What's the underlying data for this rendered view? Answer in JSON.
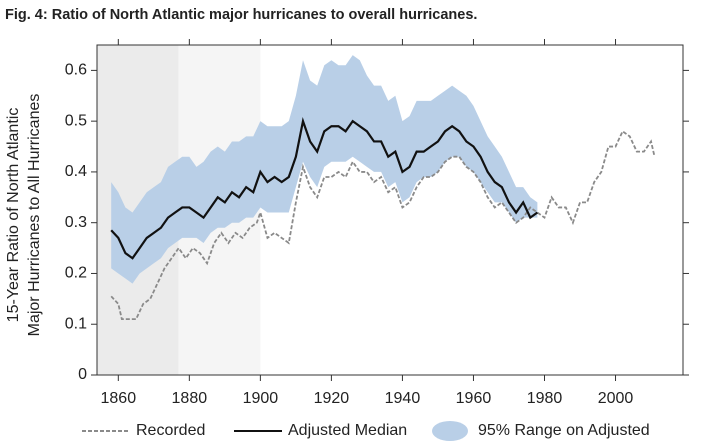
{
  "chart_data": {
    "type": "line",
    "title": "Fig. 4: Ratio of North Atlantic major hurricanes to overall hurricanes.",
    "ylabel": [
      "15-Year Ratio of North Atlantic",
      "Major Hurricanes to All Hurricanes"
    ],
    "xlim": [
      1854,
      2019
    ],
    "xticks": [
      1860,
      1880,
      1900,
      1920,
      1940,
      1960,
      1980,
      2000
    ],
    "ylim": [
      0,
      0.65
    ],
    "yticks": [
      0,
      0.1,
      0.2,
      0.3,
      0.4,
      0.5,
      0.6
    ],
    "shading": [
      {
        "from": 1854,
        "to": 1877,
        "color": "#ebebeb"
      },
      {
        "from": 1877,
        "to": 1900,
        "color": "#f5f5f5"
      }
    ],
    "legend": "bottom",
    "series": [
      {
        "name": "Recorded",
        "color": "#8a8a8a",
        "style": "dashed",
        "x": [
          1858,
          1860,
          1861,
          1863,
          1865,
          1867,
          1869,
          1871,
          1873,
          1875,
          1877,
          1879,
          1881,
          1883,
          1885,
          1887,
          1889,
          1891,
          1893,
          1895,
          1897,
          1899,
          1900,
          1902,
          1904,
          1906,
          1908,
          1910,
          1912,
          1914,
          1916,
          1918,
          1920,
          1922,
          1924,
          1926,
          1928,
          1930,
          1932,
          1934,
          1936,
          1938,
          1940,
          1942,
          1944,
          1946,
          1948,
          1950,
          1952,
          1954,
          1956,
          1958,
          1960,
          1962,
          1964,
          1966,
          1968,
          1970,
          1972,
          1974,
          1976,
          1978,
          1980,
          1982,
          1984,
          1986,
          1988,
          1990,
          1992,
          1994,
          1996,
          1998,
          2000,
          2002,
          2004,
          2006,
          2008,
          2010,
          2011
        ],
        "values": [
          0.155,
          0.14,
          0.11,
          0.11,
          0.11,
          0.14,
          0.15,
          0.18,
          0.21,
          0.23,
          0.25,
          0.23,
          0.25,
          0.24,
          0.22,
          0.26,
          0.28,
          0.26,
          0.28,
          0.27,
          0.29,
          0.3,
          0.32,
          0.27,
          0.28,
          0.27,
          0.26,
          0.34,
          0.41,
          0.37,
          0.35,
          0.39,
          0.39,
          0.4,
          0.39,
          0.42,
          0.4,
          0.4,
          0.38,
          0.39,
          0.36,
          0.37,
          0.33,
          0.34,
          0.37,
          0.39,
          0.39,
          0.4,
          0.42,
          0.43,
          0.43,
          0.41,
          0.4,
          0.38,
          0.35,
          0.33,
          0.34,
          0.32,
          0.3,
          0.31,
          0.33,
          0.32,
          0.31,
          0.35,
          0.33,
          0.33,
          0.3,
          0.34,
          0.34,
          0.38,
          0.4,
          0.45,
          0.45,
          0.48,
          0.47,
          0.44,
          0.44,
          0.46,
          0.43
        ]
      },
      {
        "name": "Adjusted Median",
        "color": "#111111",
        "style": "solid",
        "x": [
          1858,
          1860,
          1862,
          1864,
          1866,
          1868,
          1870,
          1872,
          1874,
          1876,
          1878,
          1880,
          1882,
          1884,
          1886,
          1888,
          1890,
          1892,
          1894,
          1896,
          1898,
          1900,
          1902,
          1904,
          1906,
          1908,
          1910,
          1912,
          1914,
          1916,
          1918,
          1920,
          1922,
          1924,
          1926,
          1928,
          1930,
          1932,
          1934,
          1936,
          1938,
          1940,
          1942,
          1944,
          1946,
          1948,
          1950,
          1952,
          1954,
          1956,
          1958,
          1960,
          1962,
          1964,
          1966,
          1968,
          1970,
          1972,
          1974,
          1976,
          1978
        ],
        "values": [
          0.285,
          0.27,
          0.24,
          0.23,
          0.25,
          0.27,
          0.28,
          0.29,
          0.31,
          0.32,
          0.33,
          0.33,
          0.32,
          0.31,
          0.33,
          0.35,
          0.34,
          0.36,
          0.35,
          0.37,
          0.36,
          0.4,
          0.38,
          0.39,
          0.38,
          0.39,
          0.43,
          0.5,
          0.46,
          0.44,
          0.48,
          0.49,
          0.49,
          0.48,
          0.5,
          0.49,
          0.48,
          0.46,
          0.46,
          0.43,
          0.44,
          0.4,
          0.41,
          0.44,
          0.44,
          0.45,
          0.46,
          0.48,
          0.49,
          0.48,
          0.46,
          0.45,
          0.43,
          0.4,
          0.38,
          0.37,
          0.34,
          0.32,
          0.34,
          0.31,
          0.32
        ]
      },
      {
        "name": "95% Range on Adjusted",
        "color": "#b9cfe7",
        "style": "band",
        "x": [
          1858,
          1860,
          1862,
          1864,
          1866,
          1868,
          1870,
          1872,
          1874,
          1876,
          1878,
          1880,
          1882,
          1884,
          1886,
          1888,
          1890,
          1892,
          1894,
          1896,
          1898,
          1900,
          1902,
          1904,
          1906,
          1908,
          1910,
          1912,
          1914,
          1916,
          1918,
          1920,
          1922,
          1924,
          1926,
          1928,
          1930,
          1932,
          1934,
          1936,
          1938,
          1940,
          1942,
          1944,
          1946,
          1948,
          1950,
          1952,
          1954,
          1956,
          1958,
          1960,
          1962,
          1964,
          1966,
          1968,
          1970,
          1972,
          1974,
          1976,
          1978
        ],
        "low": [
          0.21,
          0.2,
          0.19,
          0.18,
          0.2,
          0.21,
          0.22,
          0.23,
          0.25,
          0.26,
          0.27,
          0.27,
          0.27,
          0.26,
          0.28,
          0.29,
          0.29,
          0.3,
          0.3,
          0.31,
          0.31,
          0.33,
          0.32,
          0.32,
          0.32,
          0.32,
          0.37,
          0.42,
          0.39,
          0.37,
          0.41,
          0.42,
          0.42,
          0.42,
          0.43,
          0.42,
          0.41,
          0.4,
          0.4,
          0.37,
          0.38,
          0.34,
          0.35,
          0.38,
          0.39,
          0.39,
          0.4,
          0.42,
          0.43,
          0.43,
          0.41,
          0.4,
          0.38,
          0.36,
          0.34,
          0.34,
          0.32,
          0.3,
          0.31,
          0.31,
          0.31
        ],
        "high": [
          0.38,
          0.36,
          0.33,
          0.32,
          0.34,
          0.36,
          0.37,
          0.38,
          0.41,
          0.42,
          0.43,
          0.43,
          0.41,
          0.42,
          0.44,
          0.45,
          0.44,
          0.46,
          0.46,
          0.47,
          0.47,
          0.5,
          0.49,
          0.49,
          0.49,
          0.5,
          0.55,
          0.62,
          0.58,
          0.57,
          0.61,
          0.62,
          0.61,
          0.61,
          0.63,
          0.62,
          0.59,
          0.57,
          0.57,
          0.54,
          0.55,
          0.5,
          0.51,
          0.54,
          0.54,
          0.54,
          0.55,
          0.56,
          0.57,
          0.56,
          0.55,
          0.53,
          0.5,
          0.47,
          0.45,
          0.43,
          0.4,
          0.37,
          0.37,
          0.35,
          0.34
        ]
      }
    ]
  }
}
